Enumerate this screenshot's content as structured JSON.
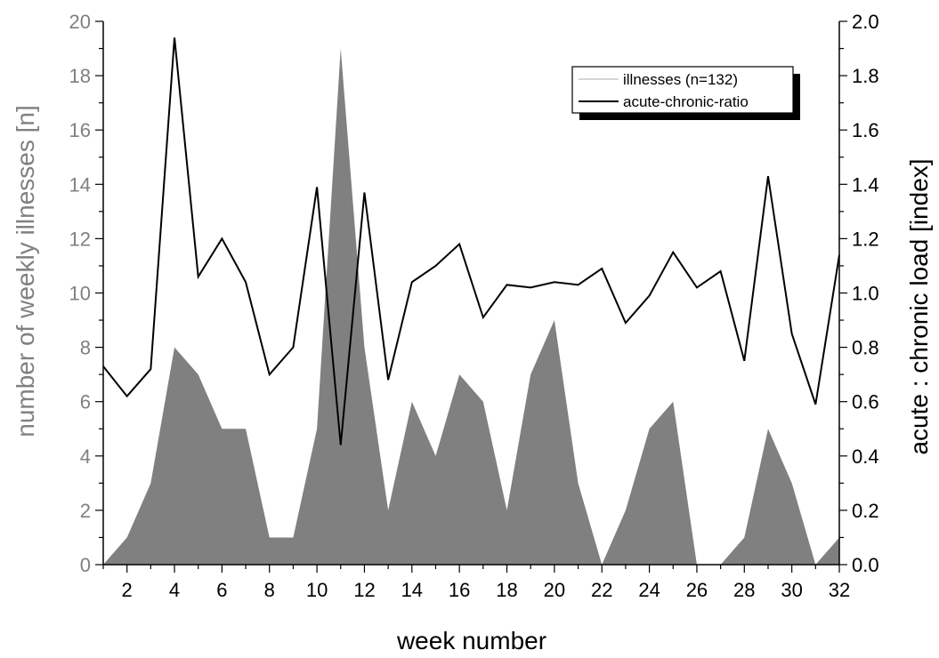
{
  "chart_data": {
    "type": "area+line",
    "title": "",
    "xlabel": "week number",
    "ylabel_left": "number of weekly illnesses [n]",
    "ylabel_right": "acute : chronic load [index]",
    "xlim": [
      1,
      32
    ],
    "ylim_left": [
      0,
      20
    ],
    "ylim_right": [
      0,
      2.0
    ],
    "x_ticks": [
      2,
      4,
      6,
      8,
      10,
      12,
      14,
      16,
      18,
      20,
      22,
      24,
      26,
      28,
      30,
      32
    ],
    "y_left_ticks": [
      "0",
      "2",
      "4",
      "6",
      "8",
      "10",
      "12",
      "14",
      "16",
      "18",
      "20"
    ],
    "y_right_ticks": [
      "0.0",
      "0.2",
      "0.4",
      "0.6",
      "0.8",
      "1.0",
      "1.2",
      "1.4",
      "1.6",
      "1.8",
      "2.0"
    ],
    "grid": false,
    "legend_position": "top-right",
    "series": [
      {
        "name": "illnesses (n=132)",
        "axis": "left",
        "kind": "area",
        "color": "#808080",
        "x": [
          1,
          2,
          3,
          4,
          5,
          6,
          7,
          8,
          9,
          10,
          11,
          12,
          13,
          14,
          15,
          16,
          17,
          18,
          19,
          20,
          21,
          22,
          23,
          24,
          25,
          26,
          27,
          28,
          29,
          30,
          31,
          32
        ],
        "values": [
          0,
          1,
          3,
          8,
          7,
          5,
          5,
          1,
          1,
          5,
          19,
          8,
          2,
          6,
          4,
          7,
          6,
          2,
          7,
          9,
          3,
          0,
          2,
          5,
          6,
          0,
          0,
          1,
          5,
          3,
          0,
          1
        ]
      },
      {
        "name": "acute-chronic-ratio",
        "axis": "right",
        "kind": "line",
        "color": "#000000",
        "x": [
          1,
          2,
          3,
          4,
          5,
          6,
          7,
          8,
          9,
          10,
          11,
          12,
          13,
          14,
          15,
          16,
          17,
          18,
          19,
          20,
          21,
          22,
          23,
          24,
          25,
          26,
          27,
          28,
          29,
          30,
          31,
          32
        ],
        "values": [
          0.73,
          0.62,
          0.72,
          1.94,
          1.06,
          1.2,
          1.04,
          0.7,
          0.8,
          1.39,
          0.44,
          1.37,
          0.68,
          1.04,
          1.1,
          1.18,
          0.91,
          1.03,
          1.02,
          1.04,
          1.03,
          1.09,
          0.89,
          0.99,
          1.15,
          1.02,
          1.08,
          0.75,
          1.43,
          0.85,
          0.59,
          1.14
        ]
      }
    ]
  }
}
